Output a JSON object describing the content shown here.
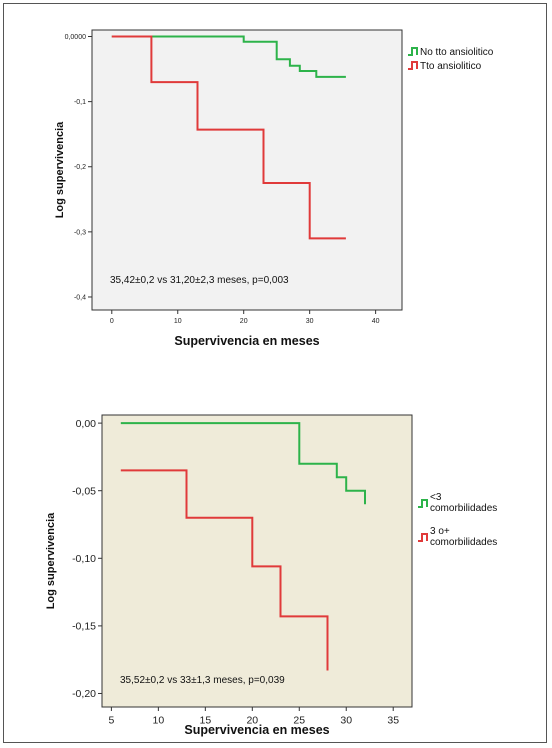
{
  "chart_data": [
    {
      "type": "line",
      "step": true,
      "xlabel": "Supervivencia en meses",
      "ylabel": "Log supervivencia",
      "xlim": [
        -3,
        44
      ],
      "ylim": [
        -0.42,
        0.01
      ],
      "x_ticks": [
        0,
        10,
        20,
        30,
        40
      ],
      "x_tick_labels": [
        "0",
        "10",
        "20",
        "30",
        "40"
      ],
      "y_ticks": [
        0,
        -0.1,
        -0.2,
        -0.3,
        -0.4
      ],
      "y_tick_labels": [
        "0,0000",
        "-0,1",
        "-0,2",
        "-0,3",
        "-0,4"
      ],
      "background": "#f2f2f2",
      "annotation": "35,42±0,2 vs 31,20±2,3 meses, p=0,003",
      "legend_position": "top-right",
      "series": [
        {
          "name": "No tto ansiolitico",
          "color": "#2db34a",
          "points": [
            [
              0,
              0
            ],
            [
              20,
              0
            ],
            [
              20,
              -0.008
            ],
            [
              25,
              -0.008
            ],
            [
              25,
              -0.035
            ],
            [
              27,
              -0.035
            ],
            [
              27,
              -0.045
            ],
            [
              28.5,
              -0.045
            ],
            [
              28.5,
              -0.053
            ],
            [
              31,
              -0.053
            ],
            [
              31,
              -0.062
            ],
            [
              35.5,
              -0.062
            ]
          ]
        },
        {
          "name": "Tto ansiolitico",
          "color": "#e03a3a",
          "points": [
            [
              0,
              0
            ],
            [
              6,
              0
            ],
            [
              6,
              -0.07
            ],
            [
              13,
              -0.07
            ],
            [
              13,
              -0.143
            ],
            [
              23,
              -0.143
            ],
            [
              23,
              -0.225
            ],
            [
              30,
              -0.225
            ],
            [
              30,
              -0.31
            ],
            [
              35.5,
              -0.31
            ]
          ]
        }
      ]
    },
    {
      "type": "line",
      "step": true,
      "xlabel": "Supervivencia en meses",
      "ylabel": "Log supervivencia",
      "xlim": [
        4,
        37
      ],
      "ylim": [
        -0.21,
        0.006
      ],
      "x_ticks": [
        5,
        10,
        15,
        20,
        25,
        30,
        35
      ],
      "x_tick_labels": [
        "5",
        "10",
        "15",
        "20",
        "25",
        "30",
        "35"
      ],
      "y_ticks": [
        0,
        -0.05,
        -0.1,
        -0.15,
        -0.2
      ],
      "y_tick_labels": [
        "0,00",
        "-0,05",
        "-0,10",
        "-0,15",
        "-0,20"
      ],
      "background": "#efebd9",
      "annotation": "35,52±0,2 vs 33±1,3 meses, p=0,039",
      "legend_position": "right",
      "series": [
        {
          "name_lines": [
            "<3",
            "comorbilidades"
          ],
          "color": "#2db34a",
          "points": [
            [
              6,
              0
            ],
            [
              25,
              0
            ],
            [
              25,
              -0.03
            ],
            [
              29,
              -0.03
            ],
            [
              29,
              -0.04
            ],
            [
              30,
              -0.04
            ],
            [
              30,
              -0.05
            ],
            [
              32,
              -0.05
            ],
            [
              32,
              -0.06
            ]
          ]
        },
        {
          "name_lines": [
            "3 o+",
            "comorbilidades"
          ],
          "color": "#e03a3a",
          "points": [
            [
              6,
              -0.035
            ],
            [
              13,
              -0.035
            ],
            [
              13,
              -0.07
            ],
            [
              20,
              -0.07
            ],
            [
              20,
              -0.106
            ],
            [
              23,
              -0.106
            ],
            [
              23,
              -0.143
            ],
            [
              28,
              -0.143
            ],
            [
              28,
              -0.183
            ]
          ]
        }
      ]
    }
  ]
}
